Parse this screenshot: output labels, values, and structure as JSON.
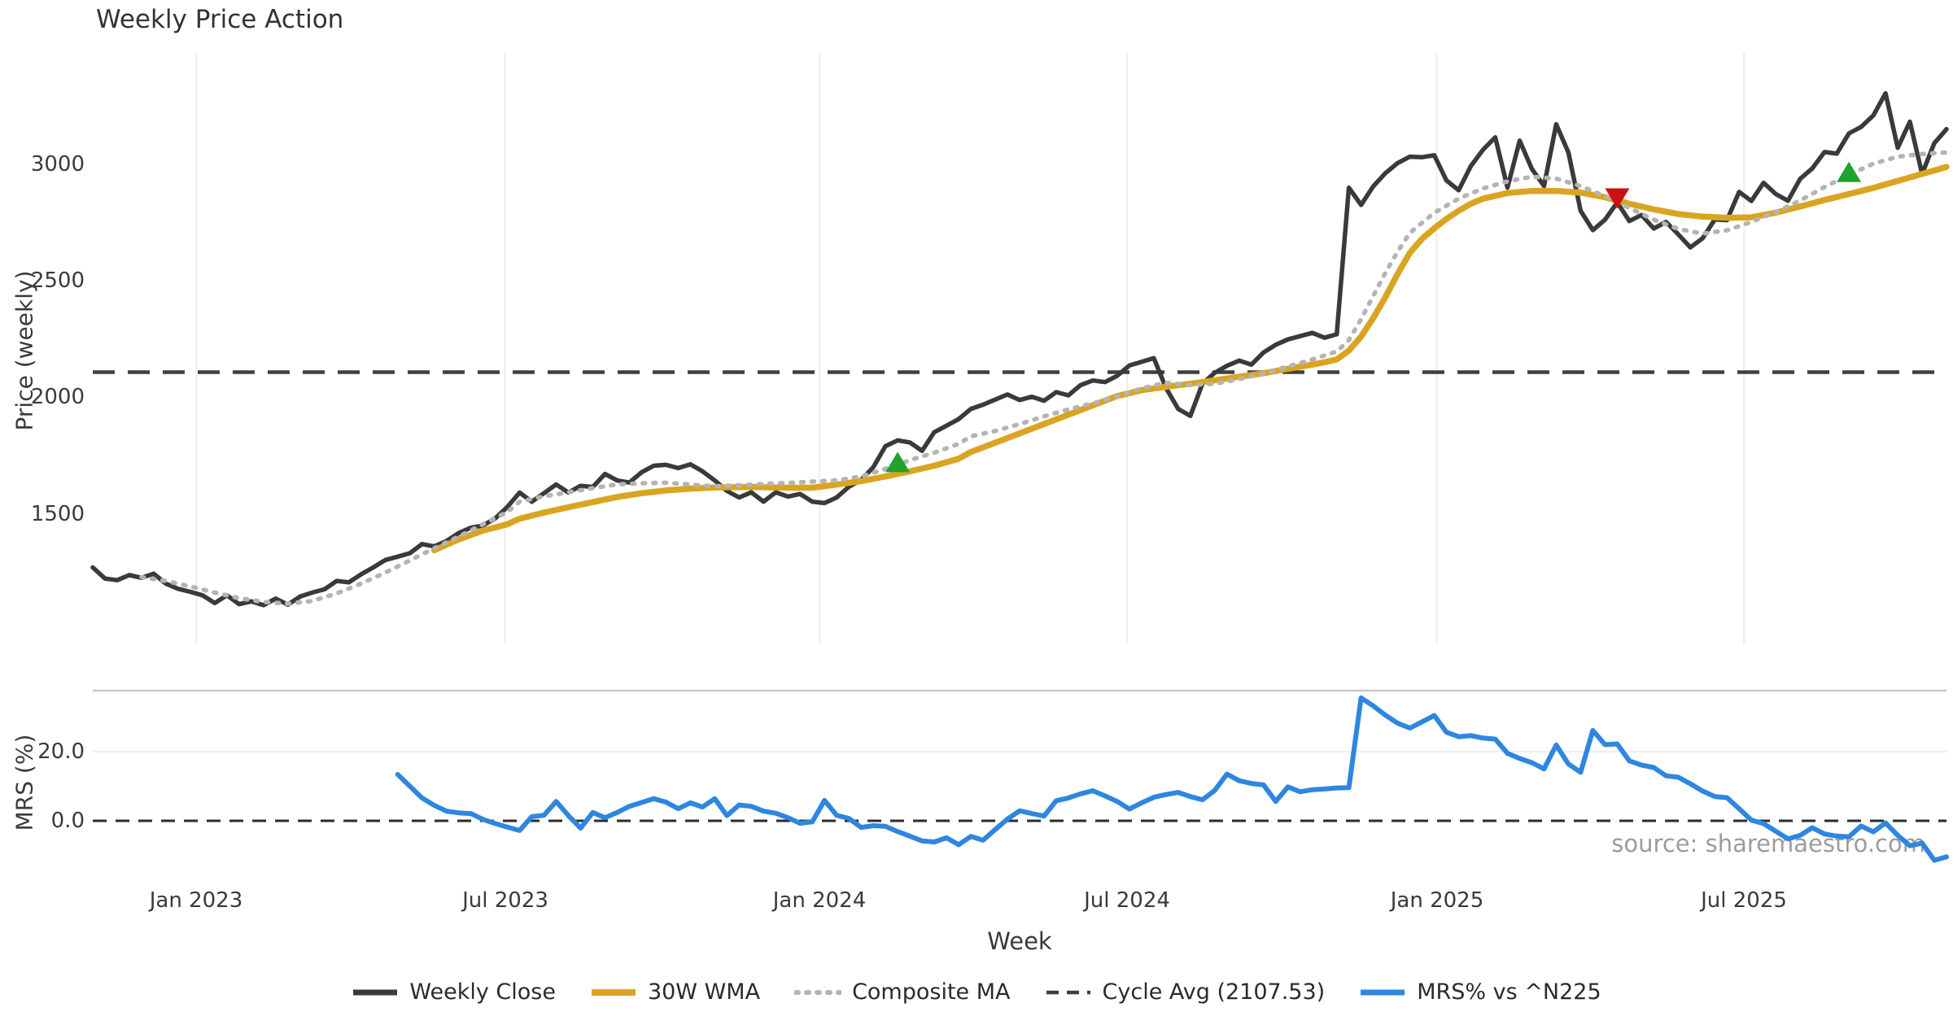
{
  "page": {
    "title": "Weekly Price Action",
    "watermark": "source: sharemaestro.com"
  },
  "colors": {
    "close": "#3a3a3a",
    "wma": "#d9a521",
    "composite": "#b4b4b4",
    "cycle": "#3f3f3f",
    "mrs": "#2e86e0",
    "marker_up": "#1fa32c",
    "marker_down": "#cc1111",
    "grid": "#ededf2",
    "spine": "#c9c9c9",
    "text": "#3a3a3a",
    "watermark": "#9c9c9c"
  },
  "chart_data": [
    {
      "id": "price",
      "type": "line",
      "title": "Weekly Price Action",
      "ylabel": "Price (weekly)",
      "ylim": [
        940,
        3460
      ],
      "yticks": [
        {
          "v": 1500,
          "label": "1500"
        },
        {
          "v": 2000,
          "label": "2000"
        },
        {
          "v": 2500,
          "label": "2500"
        },
        {
          "v": 3000,
          "label": "3000"
        }
      ],
      "x_ticks": [
        {
          "week": 8.5,
          "label": "Jan 2023"
        },
        {
          "week": 33.8,
          "label": "Jul 2023"
        },
        {
          "week": 59.6,
          "label": "Jan 2024"
        },
        {
          "week": 84.8,
          "label": "Jul 2024"
        },
        {
          "week": 110.2,
          "label": "Jan 2025"
        },
        {
          "week": 135.4,
          "label": "Jul 2025"
        }
      ],
      "xlabel": "Week",
      "xlim_weeks": [
        0,
        152
      ],
      "grid": "vertical",
      "ref_line": {
        "label": "Cycle Avg (2107.53)",
        "value": 2107.53
      },
      "series": [
        {
          "name": "Weekly Close",
          "style": "solid",
          "color_key": "close",
          "start_week": 0,
          "values": [
            1270,
            1222,
            1215,
            1237,
            1225,
            1243,
            1200,
            1178,
            1165,
            1150,
            1117,
            1150,
            1112,
            1124,
            1108,
            1136,
            1110,
            1145,
            1162,
            1176,
            1212,
            1206,
            1240,
            1270,
            1302,
            1316,
            1331,
            1370,
            1360,
            1383,
            1417,
            1440,
            1450,
            1480,
            1530,
            1591,
            1552,
            1588,
            1626,
            1591,
            1620,
            1615,
            1671,
            1643,
            1634,
            1678,
            1706,
            1710,
            1696,
            1712,
            1682,
            1643,
            1598,
            1570,
            1592,
            1552,
            1592,
            1574,
            1585,
            1552,
            1546,
            1570,
            1616,
            1645,
            1700,
            1790,
            1815,
            1806,
            1770,
            1850,
            1878,
            1906,
            1950,
            1968,
            1990,
            2012,
            1988,
            2002,
            1985,
            2022,
            2008,
            2052,
            2072,
            2065,
            2092,
            2136,
            2152,
            2168,
            2040,
            1950,
            1920,
            2059,
            2105,
            2135,
            2157,
            2140,
            2192,
            2225,
            2248,
            2262,
            2276,
            2255,
            2270,
            2899,
            2825,
            2905,
            2962,
            3005,
            3032,
            3030,
            3038,
            2930,
            2888,
            2992,
            3062,
            3115,
            2899,
            3101,
            2980,
            2906,
            3171,
            3050,
            2800,
            2717,
            2762,
            2836,
            2756,
            2782,
            2724,
            2752,
            2699,
            2643,
            2682,
            2763,
            2760,
            2881,
            2842,
            2920,
            2872,
            2843,
            2937,
            2982,
            3052,
            3045,
            3132,
            3160,
            3209,
            3304,
            3070,
            3182,
            2958,
            3090,
            3150
          ]
        },
        {
          "name": "30W WMA",
          "style": "solid",
          "color_key": "wma",
          "points": [
            [
              28,
              1343
            ],
            [
              30,
              1390
            ],
            [
              32,
              1428
            ],
            [
              34,
              1455
            ],
            [
              35,
              1479
            ],
            [
              37,
              1505
            ],
            [
              39,
              1528
            ],
            [
              41,
              1550
            ],
            [
              43,
              1572
            ],
            [
              45,
              1588
            ],
            [
              47,
              1600
            ],
            [
              49,
              1608
            ],
            [
              51,
              1613
            ],
            [
              54,
              1615
            ],
            [
              57,
              1612
            ],
            [
              59,
              1612
            ],
            [
              61,
              1625
            ],
            [
              63,
              1640
            ],
            [
              65,
              1660
            ],
            [
              67,
              1682
            ],
            [
              69,
              1706
            ],
            [
              71,
              1736
            ],
            [
              72,
              1765
            ],
            [
              74,
              1805
            ],
            [
              76,
              1845
            ],
            [
              78,
              1885
            ],
            [
              80,
              1925
            ],
            [
              82,
              1965
            ],
            [
              84,
              2005
            ],
            [
              86,
              2030
            ],
            [
              88,
              2045
            ],
            [
              90,
              2058
            ],
            [
              92,
              2073
            ],
            [
              94,
              2088
            ],
            [
              96,
              2103
            ],
            [
              98,
              2122
            ],
            [
              100,
              2140
            ],
            [
              101,
              2150
            ],
            [
              102,
              2162
            ],
            [
              103,
              2200
            ],
            [
              104,
              2260
            ],
            [
              105,
              2340
            ],
            [
              106,
              2430
            ],
            [
              107,
              2530
            ],
            [
              108,
              2620
            ],
            [
              109,
              2680
            ],
            [
              110,
              2725
            ],
            [
              111,
              2765
            ],
            [
              112,
              2800
            ],
            [
              113,
              2830
            ],
            [
              114,
              2852
            ],
            [
              116,
              2876
            ],
            [
              118,
              2885
            ],
            [
              120,
              2885
            ],
            [
              122,
              2878
            ],
            [
              124,
              2858
            ],
            [
              126,
              2830
            ],
            [
              128,
              2806
            ],
            [
              130,
              2786
            ],
            [
              132,
              2775
            ],
            [
              134,
              2770
            ],
            [
              136,
              2772
            ],
            [
              138,
              2792
            ],
            [
              140,
              2818
            ],
            [
              142,
              2846
            ],
            [
              144,
              2872
            ],
            [
              146,
              2898
            ],
            [
              148,
              2928
            ],
            [
              150,
              2958
            ],
            [
              152,
              2988
            ]
          ]
        },
        {
          "name": "Composite MA",
          "style": "dotted",
          "color_key": "composite",
          "points": [
            [
              4,
              1228
            ],
            [
              6,
              1212
            ],
            [
              8,
              1188
            ],
            [
              10,
              1162
            ],
            [
              12,
              1138
            ],
            [
              14,
              1122
            ],
            [
              16,
              1114
            ],
            [
              18,
              1126
            ],
            [
              20,
              1158
            ],
            [
              22,
              1200
            ],
            [
              24,
              1248
            ],
            [
              26,
              1300
            ],
            [
              28,
              1352
            ],
            [
              30,
              1402
            ],
            [
              32,
              1455
            ],
            [
              34,
              1508
            ],
            [
              35,
              1552
            ],
            [
              37,
              1575
            ],
            [
              39,
              1592
            ],
            [
              41,
              1610
            ],
            [
              43,
              1626
            ],
            [
              45,
              1631
            ],
            [
              47,
              1633
            ],
            [
              49,
              1625
            ],
            [
              51,
              1618
            ],
            [
              53,
              1622
            ],
            [
              55,
              1628
            ],
            [
              57,
              1632
            ],
            [
              59,
              1638
            ],
            [
              61,
              1643
            ],
            [
              63,
              1660
            ],
            [
              65,
              1692
            ],
            [
              67,
              1730
            ],
            [
              69,
              1762
            ],
            [
              71,
              1800
            ],
            [
              72,
              1832
            ],
            [
              74,
              1855
            ],
            [
              76,
              1885
            ],
            [
              78,
              1918
            ],
            [
              80,
              1948
            ],
            [
              82,
              1974
            ],
            [
              84,
              2002
            ],
            [
              86,
              2038
            ],
            [
              88,
              2062
            ],
            [
              90,
              2052
            ],
            [
              92,
              2058
            ],
            [
              94,
              2078
            ],
            [
              96,
              2102
            ],
            [
              98,
              2132
            ],
            [
              100,
              2162
            ],
            [
              102,
              2196
            ],
            [
              103,
              2245
            ],
            [
              104,
              2335
            ],
            [
              105,
              2435
            ],
            [
              106,
              2535
            ],
            [
              107,
              2625
            ],
            [
              108,
              2705
            ],
            [
              110,
              2792
            ],
            [
              112,
              2852
            ],
            [
              114,
              2896
            ],
            [
              116,
              2926
            ],
            [
              118,
              2946
            ],
            [
              120,
              2938
            ],
            [
              122,
              2906
            ],
            [
              124,
              2862
            ],
            [
              126,
              2812
            ],
            [
              128,
              2762
            ],
            [
              130,
              2722
            ],
            [
              132,
              2702
            ],
            [
              134,
              2716
            ],
            [
              136,
              2752
            ],
            [
              138,
              2794
            ],
            [
              140,
              2844
            ],
            [
              142,
              2902
            ],
            [
              144,
              2954
            ],
            [
              146,
              3002
            ],
            [
              148,
              3032
            ],
            [
              150,
              3044
            ],
            [
              152,
              3050
            ]
          ]
        }
      ],
      "markers": [
        {
          "shape": "triangle-up",
          "week": 66,
          "value": 1717,
          "color_key": "marker_up"
        },
        {
          "shape": "triangle-down",
          "week": 125,
          "value": 2858,
          "color_key": "marker_down"
        },
        {
          "shape": "triangle-up",
          "week": 144,
          "value": 2962,
          "color_key": "marker_up"
        }
      ]
    },
    {
      "id": "mrs",
      "type": "line",
      "ylabel": "MRS (%)",
      "ylim": [
        -15.5,
        37.6
      ],
      "yticks": [
        {
          "v": 0,
          "label": "0.0"
        },
        {
          "v": 20,
          "label": "20.0"
        }
      ],
      "zero_line": 0,
      "grid": "horizontal",
      "series": [
        {
          "name": "MRS% vs ^N225",
          "style": "solid",
          "color_key": "mrs",
          "start_week": 25,
          "values": [
            13.4,
            10.0,
            6.6,
            4.5,
            2.8,
            2.3,
            2.1,
            0.4,
            -0.8,
            -1.8,
            -2.8,
            1.2,
            1.6,
            5.6,
            1.5,
            -2.1,
            2.4,
            0.9,
            2.4,
            4.2,
            5.3,
            6.4,
            5.4,
            3.5,
            5.2,
            4.0,
            6.4,
            1.5,
            4.6,
            4.2,
            2.8,
            2.2,
            0.9,
            -0.7,
            -0.3,
            5.9,
            1.6,
            0.7,
            -1.9,
            -1.4,
            -1.6,
            -3.1,
            -4.4,
            -5.8,
            -6.1,
            -4.9,
            -6.9,
            -4.5,
            -5.6,
            -2.5,
            0.5,
            2.9,
            2.1,
            1.4,
            5.8,
            6.6,
            7.8,
            8.7,
            7.2,
            5.6,
            3.4,
            5.2,
            6.8,
            7.6,
            8.2,
            7.0,
            6.1,
            8.8,
            13.5,
            11.6,
            10.8,
            10.4,
            5.6,
            9.8,
            8.4,
            9.0,
            9.2,
            9.5,
            9.6,
            35.5,
            33.2,
            30.5,
            28.2,
            26.8,
            28.6,
            30.4,
            25.6,
            24.3,
            24.6,
            23.9,
            23.6,
            19.5,
            18.0,
            16.8,
            15.0,
            21.9,
            16.4,
            14.0,
            26.1,
            22.0,
            22.2,
            17.3,
            16.1,
            15.4,
            13.0,
            12.6,
            10.7,
            8.6,
            7.0,
            6.7,
            3.5,
            0.2,
            -0.8,
            -3.0,
            -5.2,
            -4.2,
            -2.0,
            -3.8,
            -4.4,
            -4.6,
            -1.5,
            -3.2,
            -0.6,
            -4.2,
            -7.2,
            -6.4,
            -11.4,
            -10.4
          ]
        }
      ]
    }
  ],
  "legend": [
    {
      "label": "Weekly Close",
      "color_key": "close",
      "style": "solid"
    },
    {
      "label": "30W WMA",
      "color_key": "wma",
      "style": "solid"
    },
    {
      "label": "Composite MA",
      "color_key": "composite",
      "style": "dotted"
    },
    {
      "label": "Cycle Avg (2107.53)",
      "color_key": "cycle",
      "style": "dashed"
    },
    {
      "label": "MRS% vs ^N225",
      "color_key": "mrs",
      "style": "solid"
    }
  ]
}
